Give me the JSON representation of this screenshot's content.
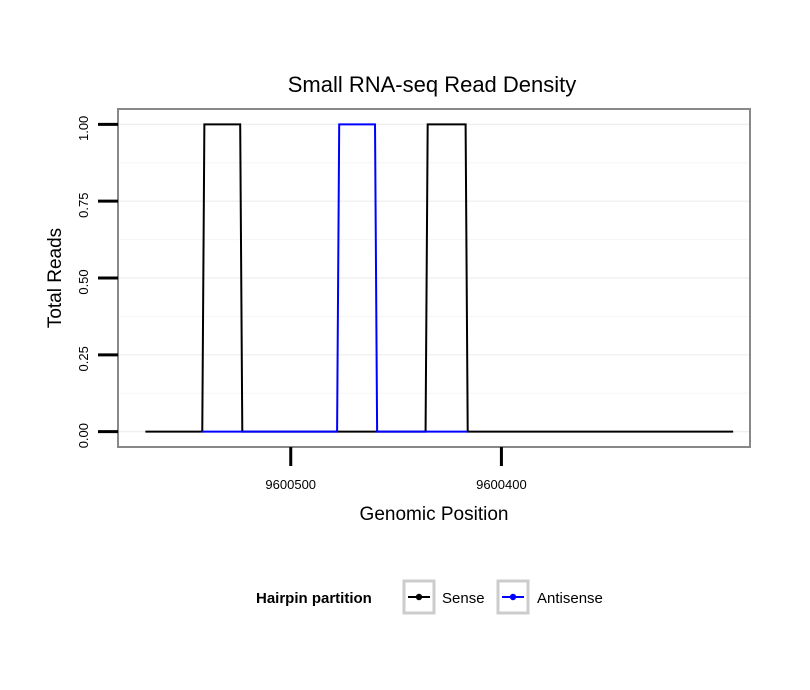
{
  "chart_data": {
    "type": "line",
    "title": "Small RNA-seq Read Density",
    "xlabel": "Genomic Position",
    "ylabel": "Total Reads",
    "x_reversed": true,
    "xlim": [
      9600582,
      9600282
    ],
    "ylim": [
      -0.05,
      1.05
    ],
    "x_ticks": [
      9600500,
      9600400
    ],
    "x_tick_labels": [
      "9600500",
      "9600400"
    ],
    "y_ticks": [
      0,
      0.25,
      0.5,
      0.75,
      1.0
    ],
    "y_tick_labels": [
      "0.00",
      "0.25",
      "0.50",
      "0.75",
      "1.00"
    ],
    "grid": true,
    "legend": {
      "title": "Hairpin partition",
      "position": "bottom",
      "entries": [
        "Sense",
        "Antisense"
      ]
    },
    "series": [
      {
        "name": "Sense",
        "color": "#000000",
        "x": [
          9600569,
          9600542,
          9600541,
          9600524,
          9600523,
          9600478,
          9600477,
          9600460,
          9600459,
          9600436,
          9600435,
          9600417,
          9600416,
          9600290
        ],
        "y": [
          0,
          0,
          1,
          1,
          0,
          0,
          0,
          0,
          0,
          0,
          1,
          1,
          0,
          0
        ]
      },
      {
        "name": "Antisense",
        "color": "#0000ff",
        "x": [
          9600542,
          9600541,
          9600524,
          9600523,
          9600478,
          9600477,
          9600460,
          9600459,
          9600436,
          9600435,
          9600417,
          9600416
        ],
        "y": [
          0,
          0,
          0,
          0,
          0,
          1,
          1,
          0,
          0,
          0,
          0,
          0
        ]
      }
    ]
  }
}
